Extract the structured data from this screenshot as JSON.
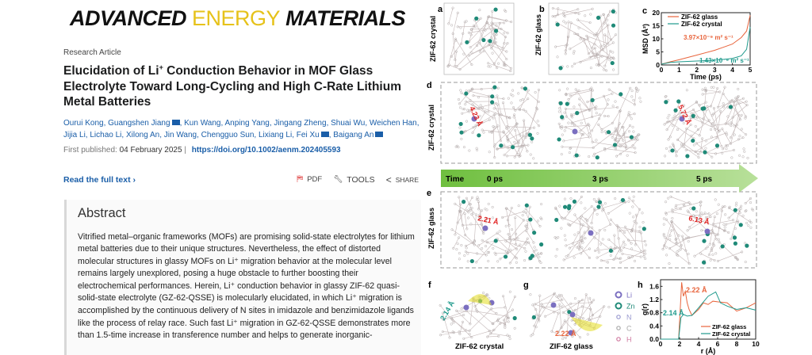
{
  "journal": {
    "logo_part1": "ADVANCED",
    "logo_part2": "ENERGY",
    "logo_part3": "MATERIALS"
  },
  "article": {
    "type": "Research Article",
    "title_pre": "Elucidation of Li",
    "title_sup": "+",
    "title_post": " Conduction Behavior in MOF Glass Electrolyte Toward Long-Cycling and High C-Rate Lithium Metal Batteries",
    "authors_line": [
      "Ourui Kong",
      "Guangshen Jiang",
      "Kun Wang",
      "Anping Yang",
      "Jingang Zheng",
      "Shuai Wu",
      "Weichen Han",
      "Jijia Li",
      "Lichao Li",
      "Xilong An",
      "Jin Wang",
      "Chengguo Sun",
      "Lixiang Li",
      "Fei Xu",
      "Baigang An"
    ],
    "corresponding_authors": [
      "Guangshen Jiang",
      "Fei Xu",
      "Baigang An"
    ],
    "published_label": "First published:",
    "published_date": "04 February 2025",
    "doi": "https://doi.org/10.1002/aenm.202405593"
  },
  "actions": {
    "read_full_text": "Read the full text",
    "pdf": "PDF",
    "tools": "TOOLS",
    "share": "SHARE"
  },
  "abstract": {
    "heading": "Abstract",
    "text": "Vitrified metal–organic frameworks (MOFs) are promising solid-state electrolytes for lithium metal batteries due to their unique structures. Nevertheless, the effect of distorted molecular structures in glassy MOFs on Li⁺ migration behavior at the molecular level remains largely unexplored, posing a huge obstacle to further boosting their electrochemical performances. Herein, Li⁺ conduction behavior in glassy ZIF-62 quasi-solid-state electrolyte (GZ-62-QSSE) is molecularly elucidated, in which Li⁺ migration is accomplished by the continuous delivery of N sites in imidazole and benzimidazole ligands like the process of relay race. Such fast Li⁺ migration in GZ-62-QSSE demonstrates more than 1.5-time increase in transference number and helps to generate inorganic-"
  },
  "figure": {
    "panel_labels": [
      "a",
      "b",
      "c",
      "d",
      "e",
      "f",
      "g",
      "h"
    ],
    "crystal_label": "ZIF-62 crystal",
    "glass_label": "ZIF-62 glass",
    "d_distances": [
      "4.23 Å",
      "5.72 Å"
    ],
    "e_distances": [
      "2.21 Å",
      "6.13 Å"
    ],
    "timeline": {
      "label": "Time",
      "t0": "0 ps",
      "t1": "3 ps",
      "t2": "5 ps"
    },
    "f_distance": "2.14 Å",
    "g_distance": "2.22 Å",
    "atom_legend": [
      {
        "label": "Li",
        "color": "#7b6fc0"
      },
      {
        "label": "Zn",
        "color": "#1f8a78"
      },
      {
        "label": "N",
        "color": "#9a9ad0"
      },
      {
        "label": "C",
        "color": "#aaaaaa"
      },
      {
        "label": "H",
        "color": "#d07aa0"
      }
    ],
    "colors": {
      "glass": "#e8643c",
      "crystal": "#1f9a8c",
      "arrow": "#8cc860",
      "distance": "#e02020"
    }
  },
  "chart_data": [
    {
      "type": "line",
      "xlabel": "Time (ps)",
      "ylabel": "MSD (Å²)",
      "xlim": [
        0,
        5
      ],
      "ylim": [
        0,
        20
      ],
      "xticks": [
        0,
        1,
        2,
        3,
        4,
        5
      ],
      "yticks": [
        0,
        5,
        10,
        15,
        20
      ],
      "legend": "top-left",
      "annotations": [
        "3.97×10⁻⁹ m² s⁻¹",
        "1.43×10⁻⁹ m² s⁻¹"
      ],
      "series": [
        {
          "name": "ZIF-62 glass",
          "x": [
            0,
            0.5,
            1,
            2,
            3,
            3.5,
            4,
            4.5,
            4.8,
            5
          ],
          "y": [
            0.3,
            1.2,
            2,
            3.8,
            5.6,
            6.8,
            8,
            10.5,
            13,
            19
          ]
        },
        {
          "name": "ZIF-62 crystal",
          "x": [
            0,
            0.5,
            1,
            2,
            3,
            4,
            4.5,
            4.8,
            5
          ],
          "y": [
            0.3,
            1,
            1.2,
            1.5,
            1.8,
            2.5,
            3.5,
            6,
            14.5
          ]
        }
      ]
    },
    {
      "type": "line",
      "xlabel": "r (Å)",
      "ylabel": "g(r)",
      "xlim": [
        0,
        10
      ],
      "ylim": [
        0,
        1.8
      ],
      "xticks": [
        0,
        2,
        4,
        6,
        8,
        10
      ],
      "yticks": [
        0.0,
        0.4,
        0.8,
        1.2,
        1.6
      ],
      "legend": "bottom-right",
      "annotations": [
        "2.22 Å",
        "2.14 Å"
      ],
      "series": [
        {
          "name": "ZIF-62 glass",
          "x": [
            0,
            1.9,
            2.05,
            2.22,
            2.4,
            2.6,
            2.8,
            3,
            3.3,
            4,
            4.5,
            5,
            5.5,
            6,
            7,
            8,
            9,
            10
          ],
          "y": [
            0,
            0,
            0.8,
            1.72,
            1.3,
            1.45,
            1.1,
            0.9,
            0.72,
            0.9,
            1.1,
            1.05,
            1.15,
            1.13,
            1.1,
            0.85,
            0.95,
            1.1
          ]
        },
        {
          "name": "ZIF-62 crystal",
          "x": [
            0,
            1.9,
            2.14,
            2.4,
            2.8,
            3.3,
            4,
            5,
            5.8,
            6.3,
            7,
            8,
            9,
            10
          ],
          "y": [
            0,
            0,
            0.65,
            0.75,
            0.7,
            0.72,
            0.95,
            1.3,
            1.43,
            1.1,
            1.0,
            0.9,
            0.95,
            0.88
          ]
        }
      ]
    }
  ]
}
